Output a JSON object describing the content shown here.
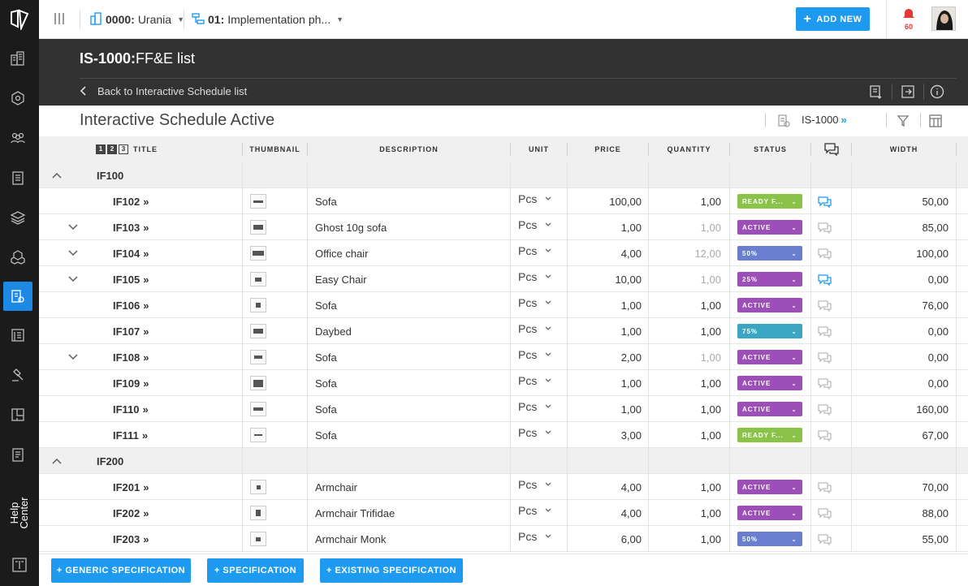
{
  "topbar": {
    "project_code": "0000:",
    "project_name": "Urania",
    "phase_code": "01:",
    "phase_name": "Implementation ph...",
    "add_new_label": "ADD NEW",
    "notification_count": "60"
  },
  "sidebar": {
    "help_label_1": "Help",
    "help_label_2": "Center"
  },
  "header": {
    "code": "IS-1000:",
    "title": "FF&E list",
    "back_label": "Back to Interactive Schedule list"
  },
  "subheader": {
    "title": "Interactive Schedule Active",
    "code": "IS-1000",
    "code_chevron": "»"
  },
  "columns": {
    "level_1": "1",
    "level_2": "2",
    "level_3": "3",
    "title": "TITLE",
    "thumbnail": "THUMBNAIL",
    "description": "DESCRIPTION",
    "unit": "UNIT",
    "price": "PRICE",
    "quantity": "QUANTITY",
    "status": "STATUS",
    "width": "WIDTH"
  },
  "status_colors": {
    "ready": "#8bc34a",
    "active": "#9c4fb8",
    "percent": "#6a7ed0",
    "percent75": "#3aa6c4"
  },
  "rows": [
    {
      "type": "group",
      "title": "IF100"
    },
    {
      "type": "item",
      "title": "IF102",
      "chev": "»",
      "toggle": false,
      "description": "Sofa",
      "unit": "Pcs",
      "price": "100,00",
      "quantity": "1,00",
      "qty_muted": false,
      "status": "READY F...",
      "status_kind": "ready",
      "comment_active": true,
      "width": "50,00"
    },
    {
      "type": "item",
      "title": "IF103",
      "chev": "»",
      "toggle": true,
      "description": "Ghost 10g sofa",
      "unit": "Pcs",
      "price": "1,00",
      "quantity": "1,00",
      "qty_muted": true,
      "status": "ACTIVE",
      "status_kind": "active",
      "comment_active": false,
      "width": "85,00"
    },
    {
      "type": "item",
      "title": "IF104",
      "chev": "»",
      "toggle": true,
      "description": "Office chair",
      "unit": "Pcs",
      "price": "4,00",
      "quantity": "12,00",
      "qty_muted": true,
      "status": "50%",
      "status_kind": "percent",
      "comment_active": false,
      "width": "100,00"
    },
    {
      "type": "item",
      "title": "IF105",
      "chev": "»",
      "toggle": true,
      "description": "Easy Chair",
      "unit": "Pcs",
      "price": "10,00",
      "quantity": "1,00",
      "qty_muted": true,
      "status": "25%",
      "status_kind": "active",
      "comment_active": true,
      "width": "0,00"
    },
    {
      "type": "item",
      "title": "IF106",
      "chev": "»",
      "toggle": false,
      "description": "Sofa",
      "unit": "Pcs",
      "price": "1,00",
      "quantity": "1,00",
      "qty_muted": false,
      "status": "ACTIVE",
      "status_kind": "active",
      "comment_active": false,
      "width": "76,00"
    },
    {
      "type": "item",
      "title": "IF107",
      "chev": "»",
      "toggle": false,
      "description": "Daybed",
      "unit": "Pcs",
      "price": "1,00",
      "quantity": "1,00",
      "qty_muted": false,
      "status": "75%",
      "status_kind": "percent75",
      "comment_active": false,
      "width": "0,00"
    },
    {
      "type": "item",
      "title": "IF108",
      "chev": "»",
      "toggle": true,
      "description": "Sofa",
      "unit": "Pcs",
      "price": "2,00",
      "quantity": "1,00",
      "qty_muted": true,
      "status": "ACTIVE",
      "status_kind": "active",
      "comment_active": false,
      "width": "0,00"
    },
    {
      "type": "item",
      "title": "IF109",
      "chev": "»",
      "toggle": false,
      "description": "Sofa",
      "unit": "Pcs",
      "price": "1,00",
      "quantity": "1,00",
      "qty_muted": false,
      "status": "ACTIVE",
      "status_kind": "active",
      "comment_active": false,
      "width": "0,00"
    },
    {
      "type": "item",
      "title": "IF110",
      "chev": "»",
      "toggle": false,
      "description": "Sofa",
      "unit": "Pcs",
      "price": "1,00",
      "quantity": "1,00",
      "qty_muted": false,
      "status": "ACTIVE",
      "status_kind": "active",
      "comment_active": false,
      "width": "160,00"
    },
    {
      "type": "item",
      "title": "IF111",
      "chev": "»",
      "toggle": false,
      "description": "Sofa",
      "unit": "Pcs",
      "price": "3,00",
      "quantity": "1,00",
      "qty_muted": false,
      "status": "READY F...",
      "status_kind": "ready",
      "comment_active": false,
      "width": "67,00"
    },
    {
      "type": "group",
      "title": "IF200"
    },
    {
      "type": "item",
      "title": "IF201",
      "chev": "»",
      "toggle": false,
      "description": "Armchair",
      "unit": "Pcs",
      "price": "4,00",
      "quantity": "1,00",
      "qty_muted": false,
      "status": "ACTIVE",
      "status_kind": "active",
      "comment_active": false,
      "width": "70,00"
    },
    {
      "type": "item",
      "title": "IF202",
      "chev": "»",
      "toggle": false,
      "description": "Armchair Trifidae",
      "unit": "Pcs",
      "price": "4,00",
      "quantity": "1,00",
      "qty_muted": false,
      "status": "ACTIVE",
      "status_kind": "active",
      "comment_active": false,
      "width": "88,00"
    },
    {
      "type": "item",
      "title": "IF203",
      "chev": "»",
      "toggle": false,
      "description": "Armchair Monk",
      "unit": "Pcs",
      "price": "6,00",
      "quantity": "1,00",
      "qty_muted": false,
      "status": "50%",
      "status_kind": "percent",
      "comment_active": false,
      "width": "55,00"
    }
  ],
  "footer": {
    "generic_spec": "+ GENERIC SPECIFICATION",
    "spec": "+ SPECIFICATION",
    "existing_spec": "+ EXISTING SPECIFICATION"
  }
}
